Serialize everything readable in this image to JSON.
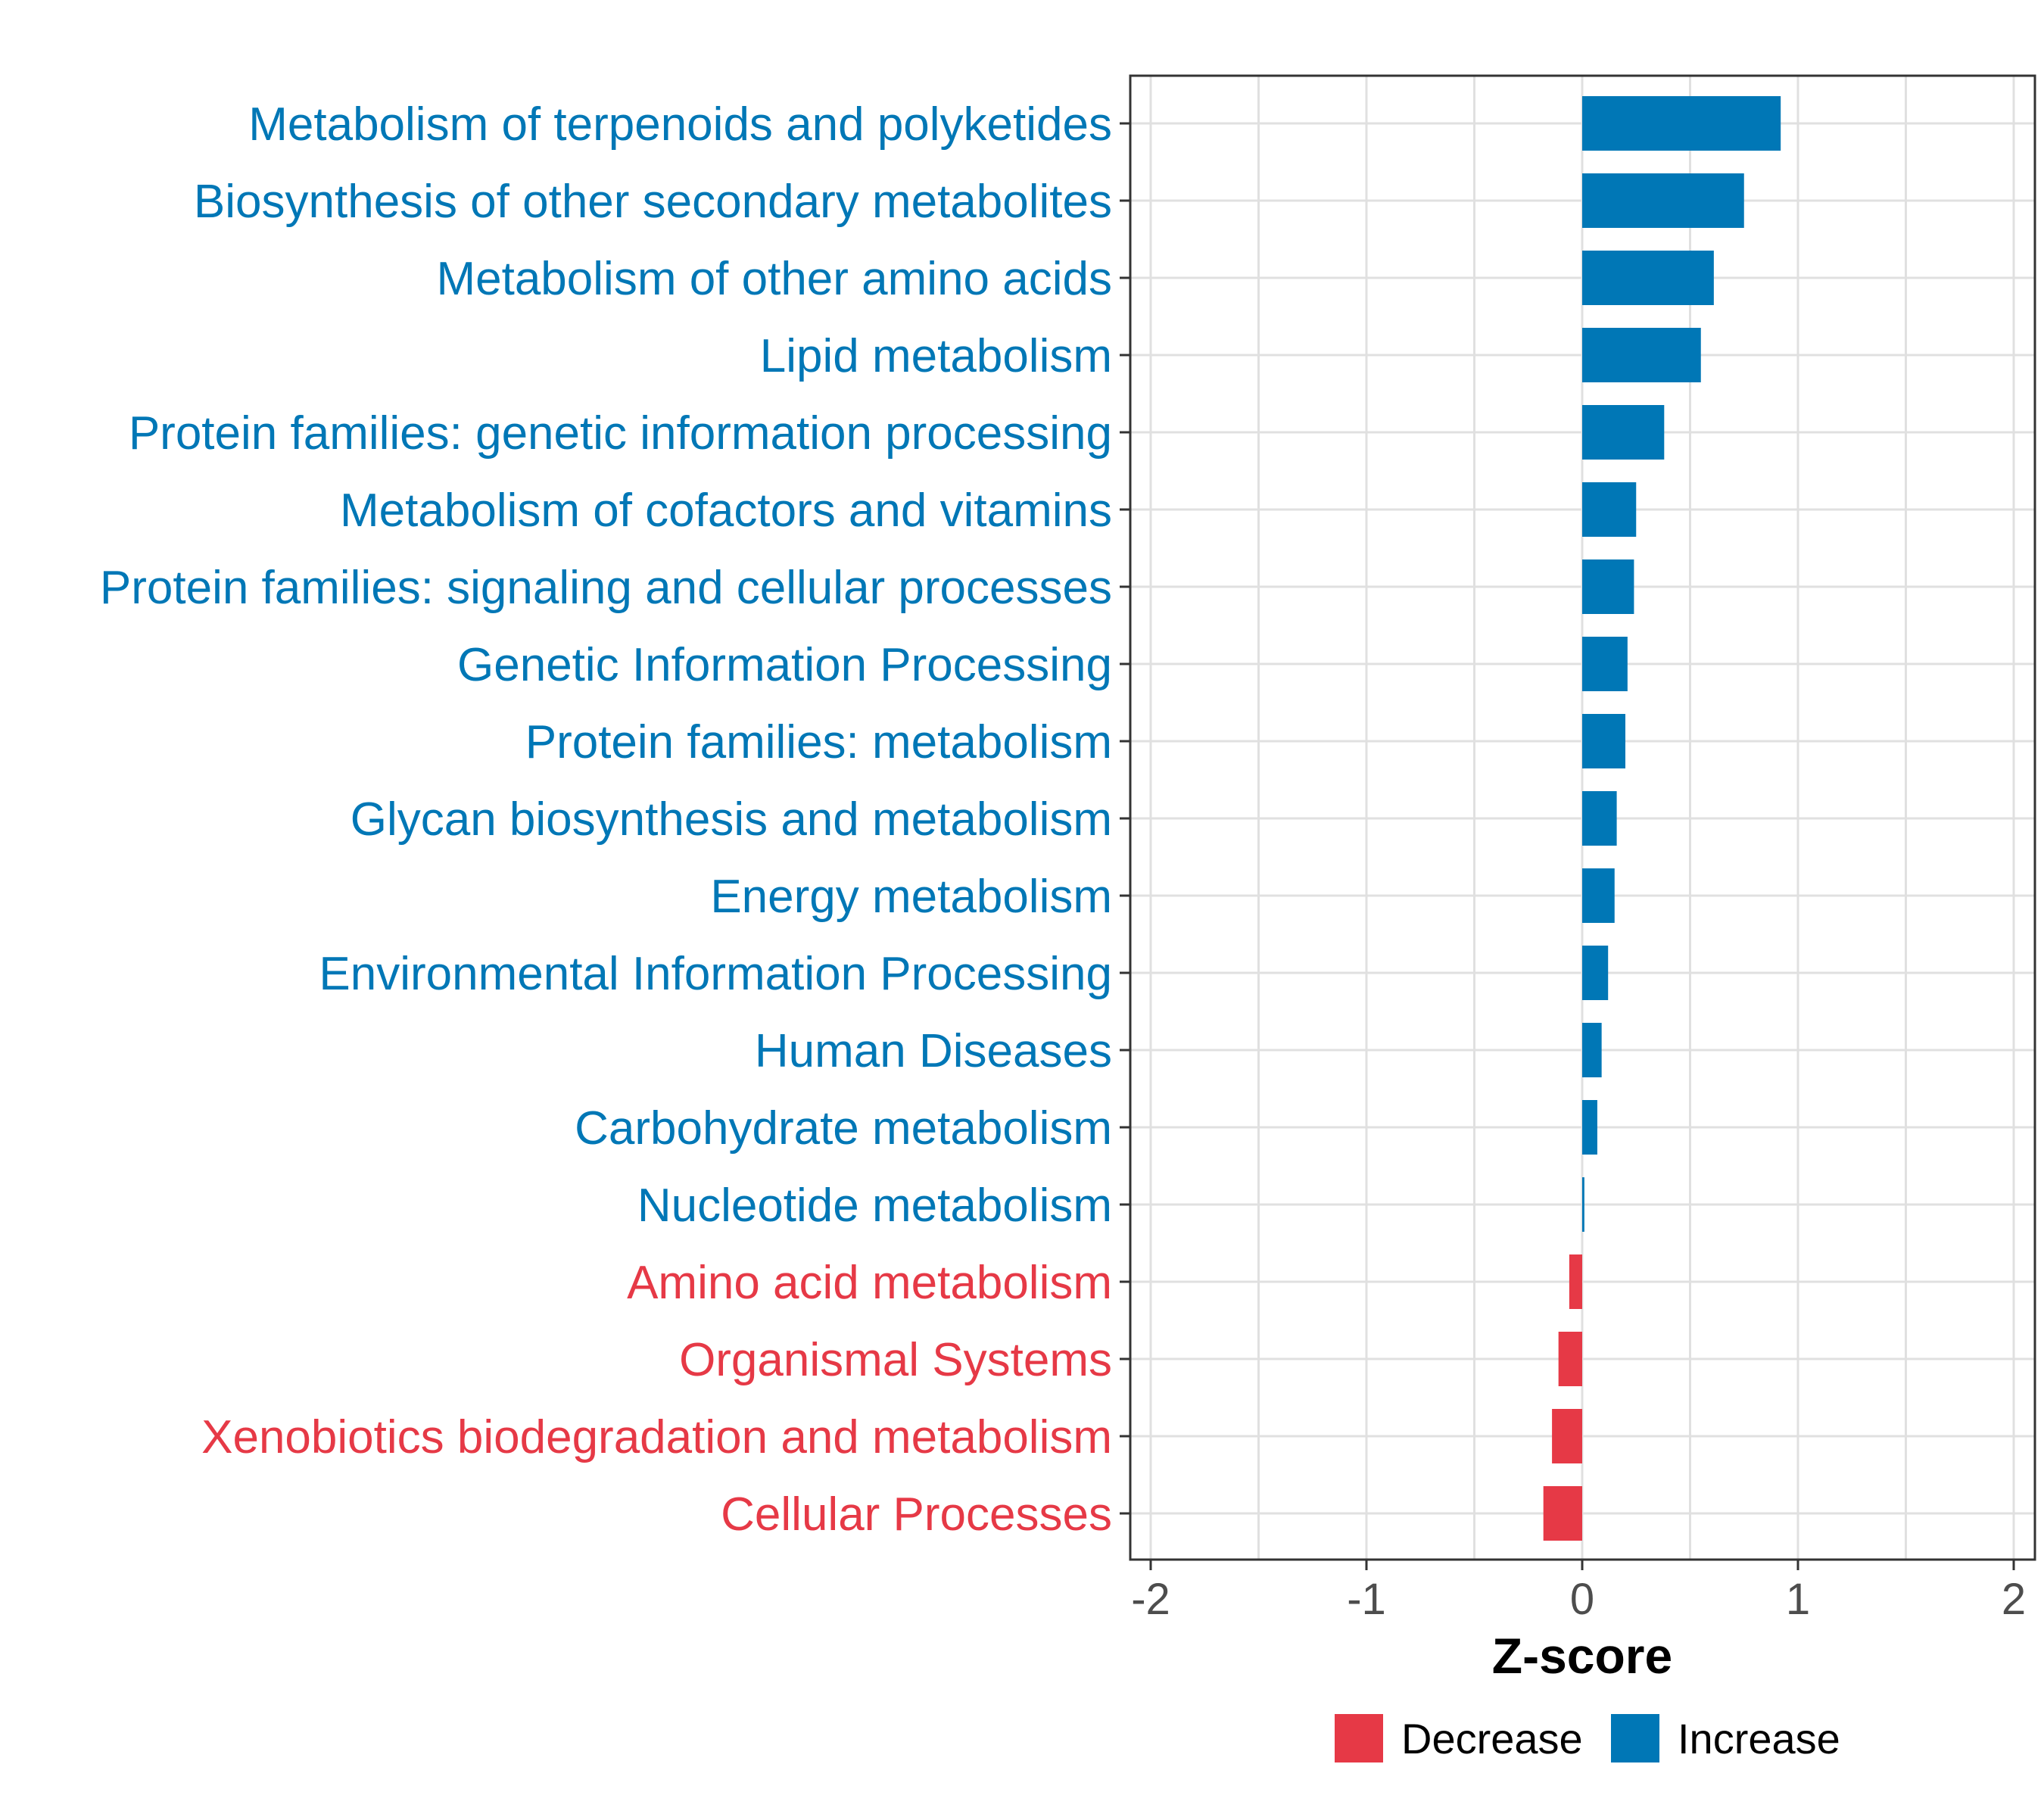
{
  "chart_data": {
    "type": "bar",
    "orientation": "horizontal",
    "title": "",
    "xlabel": "Z-score",
    "ylabel": "",
    "xlim": [
      -2,
      2
    ],
    "xticks": [
      -2,
      -1,
      0,
      1,
      2
    ],
    "xtick_labels": [
      "-2",
      "-1",
      "0",
      "1",
      "2"
    ],
    "grid": true,
    "legend": {
      "position": "bottom",
      "entries": [
        {
          "key": "decrease",
          "label": "Decrease",
          "color": "#E63946"
        },
        {
          "key": "increase",
          "label": "Increase",
          "color": "#0077B6"
        }
      ]
    },
    "categories": [
      "Metabolism of terpenoids and polyketides",
      "Biosynthesis of other secondary metabolites",
      "Metabolism of other amino acids",
      "Lipid metabolism",
      "Protein families: genetic information processing",
      "Metabolism of cofactors and vitamins",
      "Protein families: signaling and cellular processes",
      "Genetic Information Processing",
      "Protein families: metabolism",
      "Glycan biosynthesis and metabolism",
      "Energy metabolism",
      "Environmental Information Processing",
      "Human Diseases",
      "Carbohydrate metabolism",
      "Nucleotide metabolism",
      "Amino acid metabolism",
      "Organismal Systems",
      "Xenobiotics biodegradation and metabolism",
      "Cellular Processes"
    ],
    "values": [
      0.92,
      0.75,
      0.61,
      0.55,
      0.38,
      0.25,
      0.24,
      0.21,
      0.2,
      0.16,
      0.15,
      0.12,
      0.09,
      0.07,
      0.01,
      -0.06,
      -0.11,
      -0.14,
      -0.18
    ]
  }
}
